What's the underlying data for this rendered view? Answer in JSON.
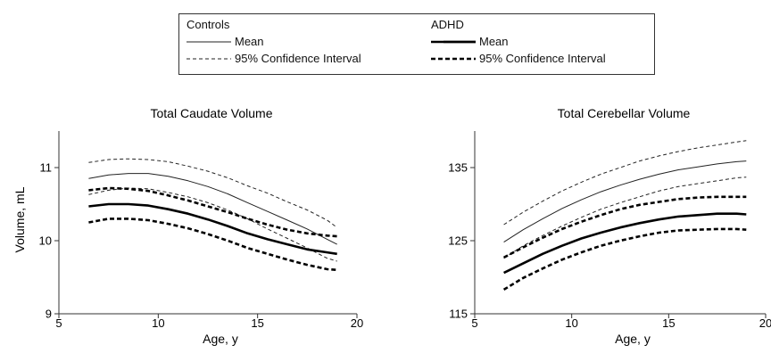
{
  "legend": {
    "controls": {
      "title": "Controls",
      "mean_label": "Mean",
      "ci_label": "95% Confidence Interval"
    },
    "adhd": {
      "title": "ADHD",
      "mean_label": "Mean",
      "ci_label": "95% Confidence Interval"
    }
  },
  "chart_data": [
    {
      "type": "line",
      "title": "Total Caudate Volume",
      "xlabel": "Age, y",
      "ylabel": "Volume, mL",
      "xlim": [
        5,
        20
      ],
      "ylim": [
        9,
        11.5
      ],
      "xticks": [
        5,
        10,
        15,
        20
      ],
      "yticks": [
        9,
        10,
        11
      ],
      "x": [
        6.5,
        7.5,
        8.5,
        9.5,
        10.5,
        11.5,
        12.5,
        13.5,
        14.5,
        15.5,
        16.5,
        17.5,
        18.5,
        19
      ],
      "series": [
        {
          "name": "Controls Mean",
          "group": "controls",
          "kind": "mean",
          "values": [
            10.85,
            10.9,
            10.92,
            10.92,
            10.88,
            10.82,
            10.74,
            10.64,
            10.52,
            10.4,
            10.28,
            10.16,
            10.02,
            9.95
          ]
        },
        {
          "name": "Controls 95% Confidence Interval (upper)",
          "group": "controls",
          "kind": "ci",
          "values": [
            11.07,
            11.11,
            11.12,
            11.11,
            11.08,
            11.02,
            10.95,
            10.86,
            10.75,
            10.65,
            10.53,
            10.42,
            10.28,
            10.18
          ]
        },
        {
          "name": "Controls 95% Confidence Interval (lower)",
          "group": "controls",
          "kind": "ci",
          "values": [
            10.63,
            10.69,
            10.72,
            10.71,
            10.66,
            10.6,
            10.52,
            10.42,
            10.3,
            10.16,
            10.03,
            9.9,
            9.76,
            9.72
          ]
        },
        {
          "name": "ADHD Mean",
          "group": "adhd",
          "kind": "mean",
          "values": [
            10.47,
            10.5,
            10.5,
            10.48,
            10.43,
            10.37,
            10.29,
            10.2,
            10.1,
            10.02,
            9.95,
            9.88,
            9.84,
            9.82
          ]
        },
        {
          "name": "ADHD 95% Confidence Interval (upper)",
          "group": "adhd",
          "kind": "ci",
          "values": [
            10.69,
            10.72,
            10.71,
            10.68,
            10.62,
            10.55,
            10.47,
            10.39,
            10.3,
            10.22,
            10.15,
            10.1,
            10.07,
            10.06
          ]
        },
        {
          "name": "ADHD 95% Confidence Interval (lower)",
          "group": "adhd",
          "kind": "ci",
          "values": [
            10.25,
            10.3,
            10.3,
            10.28,
            10.23,
            10.17,
            10.09,
            10.0,
            9.9,
            9.82,
            9.74,
            9.67,
            9.61,
            9.6
          ]
        }
      ]
    },
    {
      "type": "line",
      "title": "Total Cerebellar Volume",
      "xlabel": "Age, y",
      "ylabel": "",
      "xlim": [
        5,
        20
      ],
      "ylim": [
        115,
        140
      ],
      "xticks": [
        5,
        10,
        15,
        20
      ],
      "yticks": [
        115,
        125,
        135
      ],
      "x": [
        6.5,
        7.5,
        8.5,
        9.5,
        10.5,
        11.5,
        12.5,
        13.5,
        14.5,
        15.5,
        16.5,
        17.5,
        18.5,
        19
      ],
      "series": [
        {
          "name": "Controls Mean",
          "group": "controls",
          "kind": "mean",
          "values": [
            124.8,
            126.5,
            128.0,
            129.4,
            130.6,
            131.7,
            132.6,
            133.4,
            134.1,
            134.7,
            135.1,
            135.5,
            135.8,
            135.9
          ]
        },
        {
          "name": "Controls 95% Confidence Interval (upper)",
          "group": "controls",
          "kind": "ci",
          "values": [
            127.2,
            128.9,
            130.4,
            131.8,
            133.0,
            134.1,
            135.0,
            135.9,
            136.6,
            137.2,
            137.7,
            138.1,
            138.5,
            138.7
          ]
        },
        {
          "name": "Controls 95% Confidence Interval (lower)",
          "group": "controls",
          "kind": "ci",
          "values": [
            122.6,
            124.3,
            125.7,
            127.0,
            128.2,
            129.3,
            130.2,
            131.0,
            131.8,
            132.4,
            132.8,
            133.2,
            133.6,
            133.7
          ]
        },
        {
          "name": "ADHD Mean",
          "group": "adhd",
          "kind": "mean",
          "values": [
            120.6,
            121.9,
            123.2,
            124.3,
            125.3,
            126.1,
            126.8,
            127.4,
            127.9,
            128.3,
            128.5,
            128.7,
            128.7,
            128.6
          ]
        },
        {
          "name": "ADHD 95% Confidence Interval (upper)",
          "group": "adhd",
          "kind": "ci",
          "values": [
            122.7,
            124.1,
            125.4,
            126.6,
            127.6,
            128.5,
            129.3,
            129.9,
            130.3,
            130.7,
            130.9,
            131.0,
            131.0,
            131.0
          ]
        },
        {
          "name": "ADHD 95% Confidence Interval (lower)",
          "group": "adhd",
          "kind": "ci",
          "values": [
            118.3,
            119.9,
            121.2,
            122.4,
            123.4,
            124.3,
            125.0,
            125.6,
            126.1,
            126.4,
            126.5,
            126.6,
            126.6,
            126.5
          ]
        }
      ]
    }
  ]
}
